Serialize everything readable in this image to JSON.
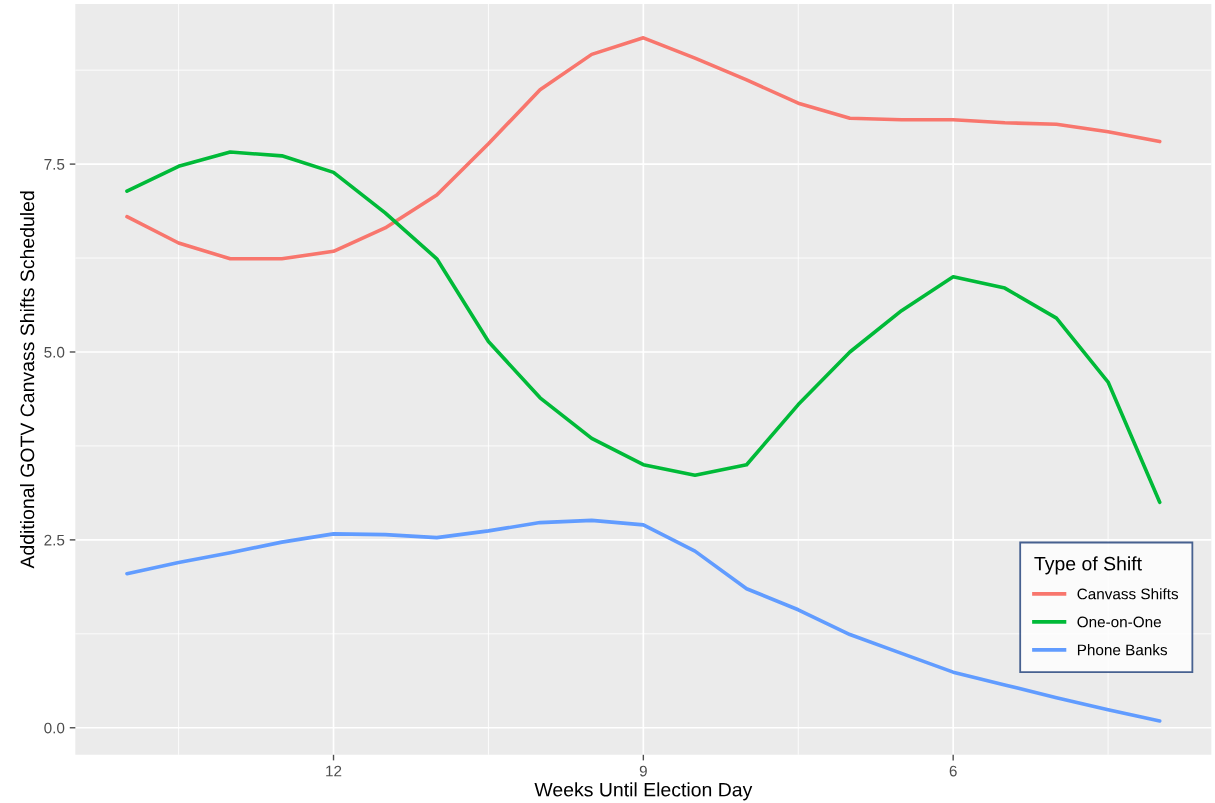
{
  "chart_data": {
    "type": "line",
    "xlabel": "Weeks Until Election Day",
    "ylabel": "Additional GOTV Canvass Shifts Scheduled",
    "legend_title": "Type of Shift",
    "x": [
      14,
      13.5,
      13,
      12.5,
      12,
      11.5,
      11,
      10.5,
      10,
      9.5,
      9,
      8.5,
      8,
      7.5,
      7,
      6.5,
      6,
      5.5,
      5,
      4.5,
      4
    ],
    "series": [
      {
        "name": "Canvass Shifts",
        "color": "#f8766d",
        "values": [
          6.8,
          6.45,
          6.24,
          6.24,
          6.34,
          6.65,
          7.09,
          7.77,
          8.49,
          8.96,
          9.18,
          8.91,
          8.62,
          8.31,
          8.11,
          8.09,
          8.09,
          8.05,
          8.03,
          7.93,
          7.8
        ]
      },
      {
        "name": "One-on-One",
        "color": "#00ba38",
        "values": [
          7.14,
          7.47,
          7.66,
          7.61,
          7.39,
          6.85,
          6.24,
          5.14,
          4.39,
          3.85,
          3.5,
          3.36,
          3.5,
          4.3,
          5.0,
          5.55,
          6.0,
          5.85,
          5.45,
          4.6,
          3.0
        ]
      },
      {
        "name": "Phone Banks",
        "color": "#619cff",
        "values": [
          2.05,
          2.2,
          2.33,
          2.47,
          2.58,
          2.57,
          2.53,
          2.62,
          2.73,
          2.76,
          2.7,
          2.35,
          1.85,
          1.57,
          1.24,
          0.99,
          0.74,
          0.57,
          0.4,
          0.24,
          0.09
        ]
      }
    ],
    "xlim": [
      14.5,
      3.5
    ],
    "xticks": [
      12,
      9,
      6
    ],
    "ylim": [
      -0.36,
      9.63
    ],
    "yticks": [
      {
        "value": 0,
        "label": "0.0"
      },
      {
        "value": 2.5,
        "label": "2.5"
      },
      {
        "value": 5,
        "label": "5.0"
      },
      {
        "value": 7.5,
        "label": "7.5"
      }
    ],
    "grid": true,
    "legend": "bottom right",
    "line_style": "solid",
    "marker": "none"
  }
}
